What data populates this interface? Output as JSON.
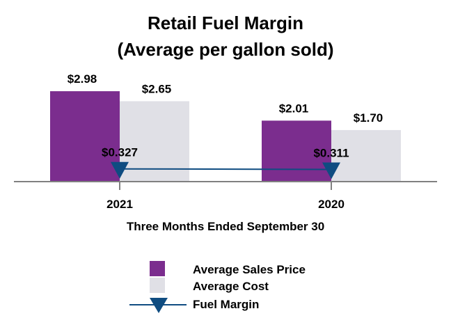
{
  "chart_data": {
    "type": "bar",
    "title": "Retail Fuel Margin",
    "subtitle": "(Average per gallon sold)",
    "xlabel": "Three Months Ended September 30",
    "ylabel": "",
    "categories": [
      "2021",
      "2020"
    ],
    "ylim": [
      0,
      3.3
    ],
    "grid": false,
    "legend_position": "bottom",
    "series": [
      {
        "name": "Average Sales Price",
        "type": "bar",
        "color": "#7b2d8e",
        "values": [
          2.98,
          2.01
        ],
        "labels": [
          "$2.98",
          "$2.01"
        ]
      },
      {
        "name": "Average Cost",
        "type": "bar",
        "color": "#e0e0e6",
        "values": [
          2.65,
          1.7
        ],
        "labels": [
          "$2.65",
          "$1.70"
        ]
      },
      {
        "name": "Fuel Margin",
        "type": "line",
        "marker": "triangle-down",
        "color": "#0f4c81",
        "values": [
          0.327,
          0.311
        ],
        "labels": [
          "$0.327",
          "$0.311"
        ]
      }
    ]
  }
}
